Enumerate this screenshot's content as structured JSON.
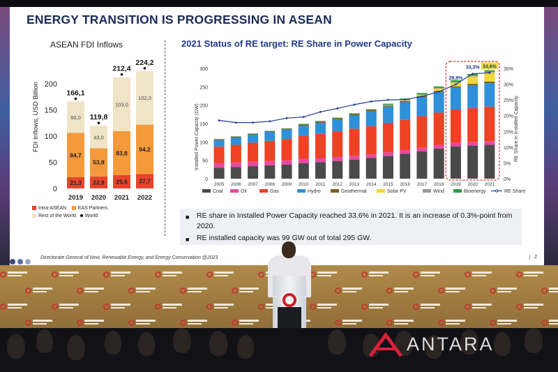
{
  "slide": {
    "title": "ENERGY TRANSITION IS PROGRESSING IN ASEAN",
    "source": "Directorate General of New, Renewable Energy, and Energy Conservation @2023",
    "page_number": "2",
    "footer_dot_colors": [
      "#3a4a7a",
      "#5b6fa8",
      "#9aa6c8"
    ]
  },
  "fdi_panel": {
    "title": "ASEAN FDI Inflows",
    "legend": {
      "intra": "Intra-ASEAN",
      "eas": "EAS Partners",
      "rest": "Rest of the World",
      "world": "World"
    }
  },
  "re_panel": {
    "title": "2021 Status of RE target: RE Share in Power Capacity"
  },
  "notes": {
    "note1": "RE share in Installed Power Capacity reached 33.6% in 2021. It is an increase of 0.3%-point from 2020.",
    "note2": "RE installed capacity was 99 GW out of total 295 GW."
  },
  "watermark": "ANTARA",
  "chart_data": [
    {
      "type": "bar",
      "title": "ASEAN FDI Inflows",
      "ylabel": "FDI Inflows, USD Billion",
      "xlabel": "",
      "categories": [
        "2019",
        "2020",
        "2021",
        "2022"
      ],
      "ylim": [
        0,
        250
      ],
      "yticks": [
        0,
        50,
        100,
        150,
        200
      ],
      "stacked": true,
      "series": [
        {
          "name": "Intra-ASEAN",
          "color": "#e8432c",
          "values": [
            21.3,
            22.9,
            25.6,
            27.7
          ],
          "labels": [
            "21,3",
            "22,9",
            "25,6",
            "27,7"
          ]
        },
        {
          "name": "EAS Partners",
          "color": "#f49a3a",
          "values": [
            84.7,
            53.8,
            83.8,
            94.2
          ],
          "labels": [
            "84,7",
            "53,8",
            "83,8",
            "94,2"
          ]
        },
        {
          "name": "Rest of the World",
          "color": "#efe4c6",
          "values": [
            60.0,
            43.0,
            103.0,
            102.3
          ],
          "labels": [
            "60,0",
            "43,0",
            "103,0",
            "102,3"
          ]
        }
      ],
      "totals": {
        "name": "World",
        "values": [
          166.1,
          119.8,
          212.4,
          224.2
        ],
        "labels": [
          "166,1",
          "119,8",
          "212,4",
          "224,2"
        ]
      },
      "legend_position": "bottom",
      "grid": false
    },
    {
      "type": "bar",
      "title": "2021 Status of RE target: RE Share in Power Capacity",
      "ylabel": "Installed Power Capacity (GW)",
      "y2label": "RE Share in Installed Capacity",
      "xlabel": "",
      "categories": [
        "2005",
        "2006",
        "2007",
        "2008",
        "2009",
        "2010",
        "2011",
        "2012",
        "2013",
        "2014",
        "2015",
        "2016",
        "2017",
        "2018",
        "2019",
        "2020",
        "2021"
      ],
      "ylim": [
        0,
        300
      ],
      "yticks": [
        0,
        50,
        100,
        150,
        200,
        250,
        300
      ],
      "y2lim": [
        0,
        35
      ],
      "y2ticks": [
        "0%",
        "5%",
        "10%",
        "15%",
        "20%",
        "25%",
        "30%",
        "35%"
      ],
      "stacked": true,
      "series": [
        {
          "name": "Coal",
          "color": "#4a4a4a",
          "values": [
            30,
            32,
            34,
            36,
            38,
            42,
            45,
            48,
            52,
            56,
            62,
            68,
            74,
            82,
            88,
            90,
            92
          ]
        },
        {
          "name": "Oil",
          "color": "#e64aa0",
          "values": [
            12,
            12,
            12,
            12,
            12,
            12,
            11,
            11,
            10,
            10,
            10,
            10,
            10,
            10,
            10,
            10,
            10
          ]
        },
        {
          "name": "Gas",
          "color": "#ef4123",
          "values": [
            45,
            48,
            52,
            55,
            58,
            62,
            66,
            70,
            74,
            77,
            80,
            82,
            86,
            88,
            90,
            92,
            94
          ]
        },
        {
          "name": "Hydro",
          "color": "#2f8fd8",
          "values": [
            18,
            20,
            22,
            24,
            26,
            28,
            30,
            32,
            36,
            40,
            44,
            48,
            52,
            56,
            60,
            62,
            64
          ]
        },
        {
          "name": "Geothermal",
          "color": "#7a5c1e",
          "values": [
            2,
            2,
            2,
            2,
            2,
            3,
            3,
            3,
            3,
            3,
            3,
            3,
            3,
            3,
            3,
            4,
            4
          ]
        },
        {
          "name": "Solar PV",
          "color": "#f2d63a",
          "values": [
            0,
            0,
            0,
            0,
            0,
            0,
            0,
            0,
            0,
            0,
            1,
            2,
            3,
            6,
            10,
            20,
            24
          ]
        },
        {
          "name": "Wind",
          "color": "#9a9a9a",
          "values": [
            0,
            0,
            0,
            0,
            0,
            0,
            0,
            0,
            0,
            0,
            1,
            1,
            1,
            2,
            3,
            3,
            3
          ]
        },
        {
          "name": "Bioenergy",
          "color": "#2e9e46",
          "values": [
            1,
            1,
            1,
            1,
            1,
            2,
            2,
            2,
            3,
            3,
            3,
            4,
            4,
            4,
            4,
            4,
            4
          ]
        }
      ],
      "line": {
        "name": "RE Share",
        "color": "#1e3a8a",
        "values": [
          18.5,
          17.8,
          17.8,
          18.2,
          19.2,
          19.6,
          21.2,
          22.3,
          23.5,
          24.5,
          25.0,
          25.1,
          26.1,
          27.6,
          29.9,
          33.3,
          33.6
        ]
      },
      "line_labels": {
        "2019": "29,9%",
        "2020": "33,3%",
        "2021": "33,6%"
      },
      "highlight": [
        "2019",
        "2020",
        "2021"
      ],
      "legend_position": "bottom",
      "grid": false
    }
  ]
}
